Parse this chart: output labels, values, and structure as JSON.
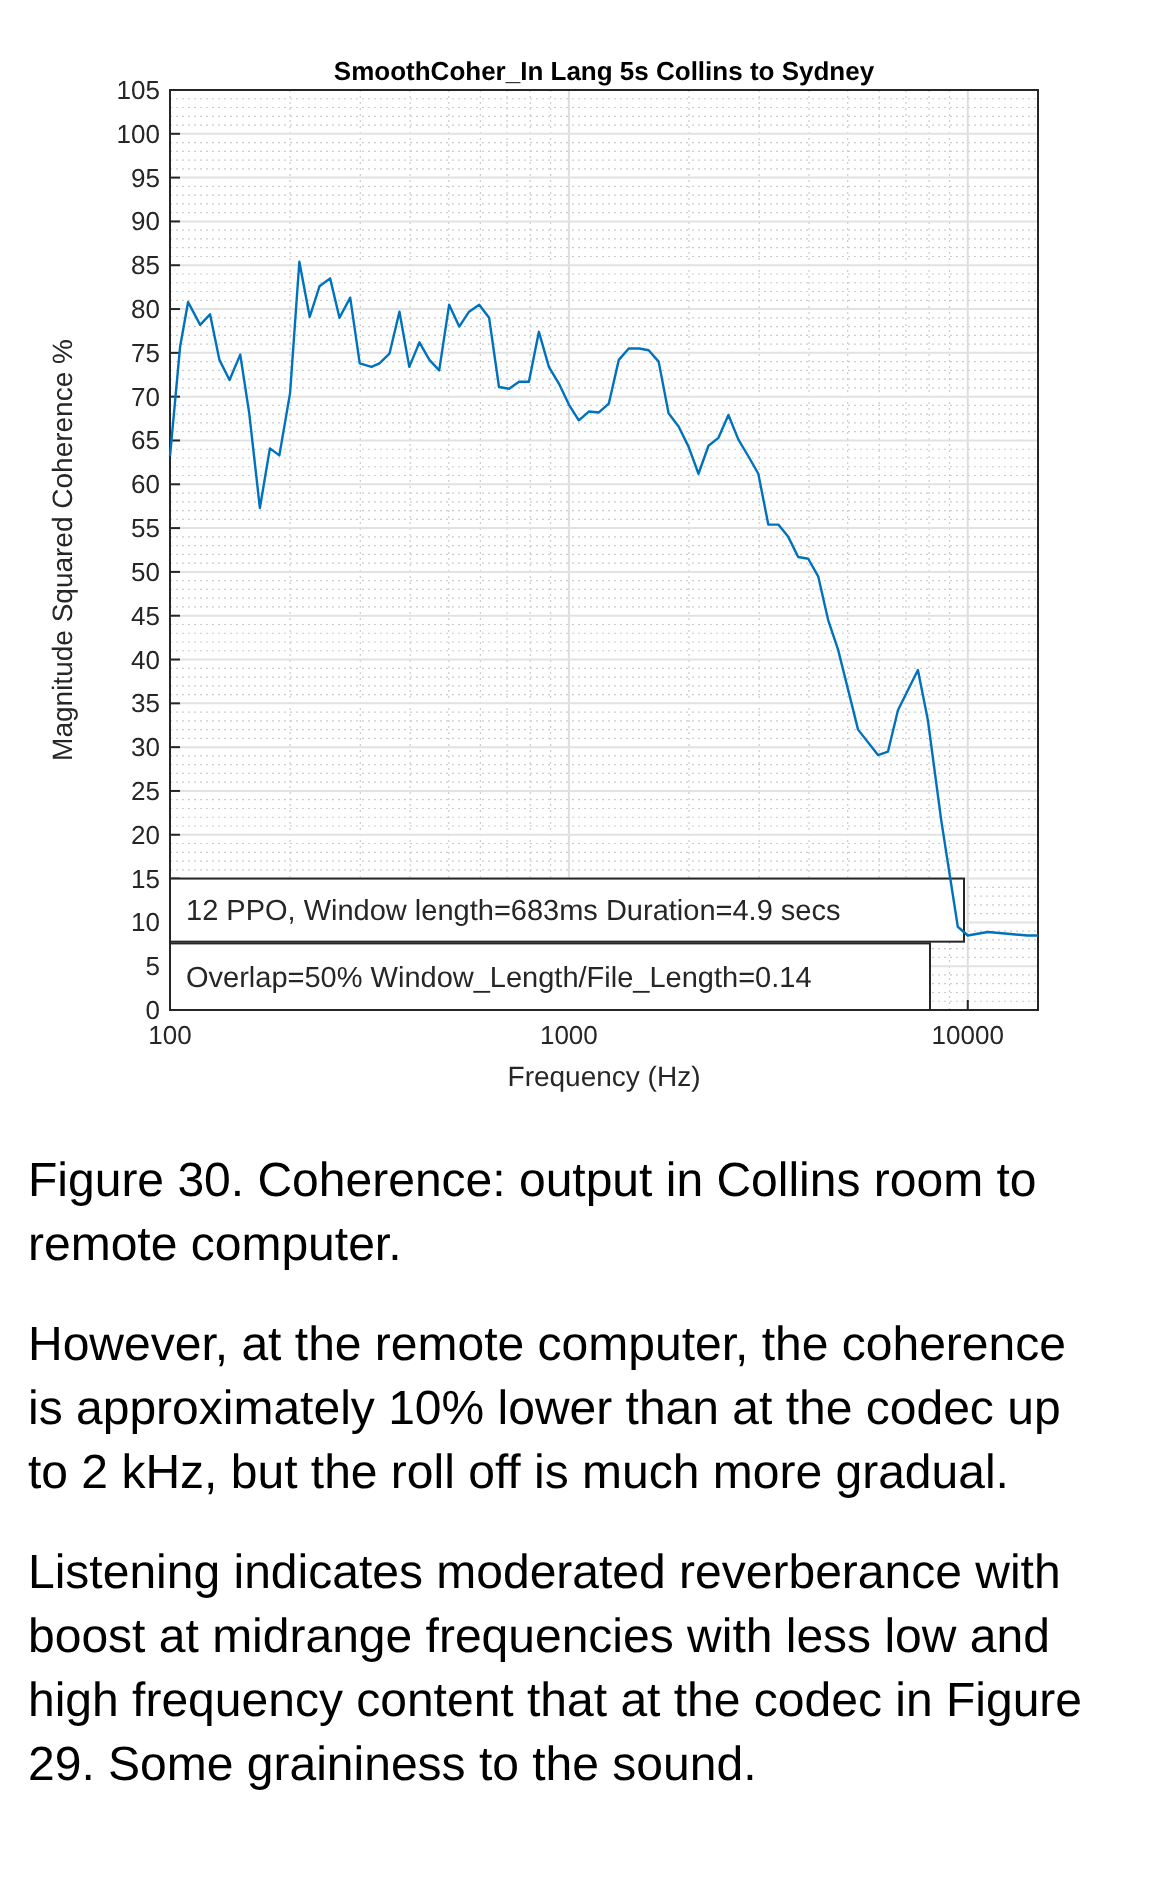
{
  "chart_data": {
    "type": "line",
    "title": "SmoothCoher_In Lang 5s Collins to Sydney",
    "xlabel": "Frequency (Hz)",
    "ylabel": "Magnitude Squared Coherence %",
    "log": "x",
    "grid": true,
    "xlim": [
      100,
      15000
    ],
    "xticks": [
      100,
      1000,
      10000
    ],
    "ylim": [
      0,
      105
    ],
    "yticks": [
      0,
      5,
      10,
      15,
      20,
      25,
      30,
      35,
      40,
      45,
      50,
      55,
      60,
      65,
      70,
      75,
      80,
      85,
      90,
      95,
      100,
      105
    ],
    "series": [
      {
        "color": "#0072bd",
        "x": [
          100,
          106,
          111,
          119,
          126,
          133,
          141,
          150,
          158,
          168,
          178,
          188,
          200,
          211,
          224,
          237,
          252,
          266,
          283,
          299,
          320,
          335,
          355,
          376,
          398,
          422,
          447,
          473,
          501,
          531,
          562,
          596,
          631,
          668,
          708,
          750,
          794,
          841,
          891,
          944,
          1000,
          1059,
          1122,
          1189,
          1259,
          1334,
          1413,
          1500,
          1585,
          1679,
          1778,
          1884,
          1995,
          2113,
          2239,
          2371,
          2512,
          2661,
          2818,
          2985,
          3162,
          3350,
          3548,
          3758,
          3981,
          4217,
          4467,
          4732,
          5309,
          5957,
          6310,
          6683,
          7499,
          7943,
          8577,
          9441,
          10000,
          11220,
          12589,
          14125,
          15000
        ],
        "values": [
          63.2,
          75.7,
          80.8,
          78.2,
          79.4,
          74.2,
          71.9,
          74.8,
          68.1,
          57.3,
          64.1,
          63.3,
          70.4,
          85.4,
          79.1,
          82.6,
          83.5,
          79,
          81.3,
          73.8,
          73.4,
          73.8,
          74.9,
          79.7,
          73.4,
          76.2,
          74.2,
          73,
          80.5,
          78,
          79.7,
          80.5,
          79,
          71.1,
          70.9,
          71.7,
          71.7,
          77.4,
          73.4,
          71.5,
          69.1,
          67.3,
          68.3,
          68.2,
          69.2,
          74.2,
          75.5,
          75.5,
          75.3,
          74,
          68.1,
          66.6,
          64.3,
          61.2,
          64.4,
          65.3,
          67.9,
          65.1,
          63.2,
          61.2,
          55.4,
          55.4,
          54,
          51.7,
          51.5,
          49.5,
          44.5,
          41.1,
          32,
          29.1,
          29.5,
          34.2,
          38.8,
          33.1,
          21.7,
          9.5,
          8.5,
          8.9,
          8.7,
          8.5,
          8.5
        ]
      }
    ],
    "annotations": [
      "12 PPO, Window length=683ms Duration=4.9 secs",
      "Overlap=50% Window_Length/File_Length=0.14",
      "Figure 30. Coherence: output in Collins room to remote computer.",
      "However, at the remote computer, the coherence is approximately 10% lower than at the codec up to 2 kHz, but the roll off is much more gradual.",
      "Listening indicates moderated reverberance with boost at midrange frequencies with less low and high frequency content that at the codec in Figure 29. Some graininess to the sound."
    ]
  }
}
